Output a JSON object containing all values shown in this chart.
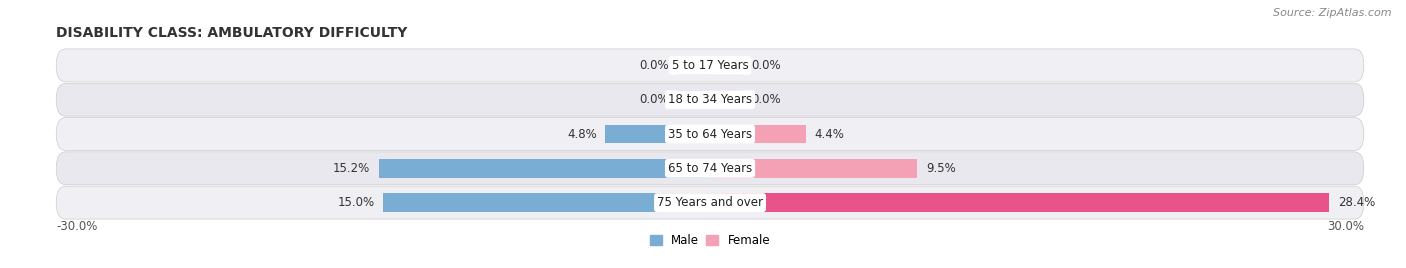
{
  "title": "DISABILITY CLASS: AMBULATORY DIFFICULTY",
  "source": "Source: ZipAtlas.com",
  "categories": [
    "5 to 17 Years",
    "18 to 34 Years",
    "35 to 64 Years",
    "65 to 74 Years",
    "75 Years and over"
  ],
  "male_values": [
    0.0,
    0.0,
    4.8,
    15.2,
    15.0
  ],
  "female_values": [
    0.0,
    0.0,
    4.4,
    9.5,
    28.4
  ],
  "male_color": "#7aadd4",
  "female_color_normal": "#f4a0b5",
  "female_color_last": "#e8538a",
  "bar_bg_color_even": "#f0f0f4",
  "bar_bg_color_odd": "#e8e8ee",
  "max_val": 30.0,
  "title_fontsize": 10,
  "source_fontsize": 8,
  "label_fontsize": 8.5,
  "bar_height": 0.55,
  "zero_stub": 1.5,
  "legend_male_label": "Male",
  "legend_female_label": "Female"
}
